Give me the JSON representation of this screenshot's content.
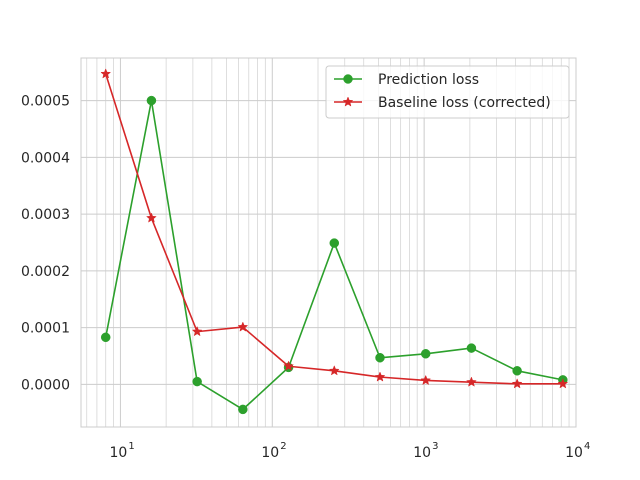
{
  "chart_data": {
    "type": "line",
    "title": "",
    "xlabel": "",
    "ylabel": "",
    "xscale": "log",
    "xlim": [
      5.5,
      10000
    ],
    "ylim": [
      -7.5e-05,
      0.000575
    ],
    "grid": true,
    "legend_position": "top-right",
    "x_ticks": [
      {
        "value": 10,
        "label_base": "10",
        "label_exp": "1"
      },
      {
        "value": 100,
        "label_base": "10",
        "label_exp": "2"
      },
      {
        "value": 1000,
        "label_base": "10",
        "label_exp": "3"
      },
      {
        "value": 10000,
        "label_base": "10",
        "label_exp": "4"
      }
    ],
    "y_ticks": [
      {
        "value": 0.0,
        "label": "0.0000"
      },
      {
        "value": 0.0001,
        "label": "0.0001"
      },
      {
        "value": 0.0002,
        "label": "0.0002"
      },
      {
        "value": 0.0003,
        "label": "0.0003"
      },
      {
        "value": 0.0004,
        "label": "0.0004"
      },
      {
        "value": 0.0005,
        "label": "0.0005"
      }
    ],
    "x": [
      8,
      16,
      32,
      64,
      128,
      256,
      512,
      1024,
      2048,
      4096,
      8192
    ],
    "series": [
      {
        "name": "Prediction loss",
        "color": "#2ca02c",
        "marker": "circle",
        "values": [
          8.3e-05,
          0.0005,
          5e-06,
          -4.4e-05,
          3e-05,
          0.000249,
          4.7e-05,
          5.4e-05,
          6.4e-05,
          2.4e-05,
          8e-06
        ]
      },
      {
        "name": "Baseline loss (corrected)",
        "color": "#d62728",
        "marker": "star",
        "values": [
          0.000547,
          0.000293,
          9.3e-05,
          0.000101,
          3.2e-05,
          2.4e-05,
          1.3e-05,
          7e-06,
          4e-06,
          1e-06,
          1e-06
        ]
      }
    ]
  }
}
